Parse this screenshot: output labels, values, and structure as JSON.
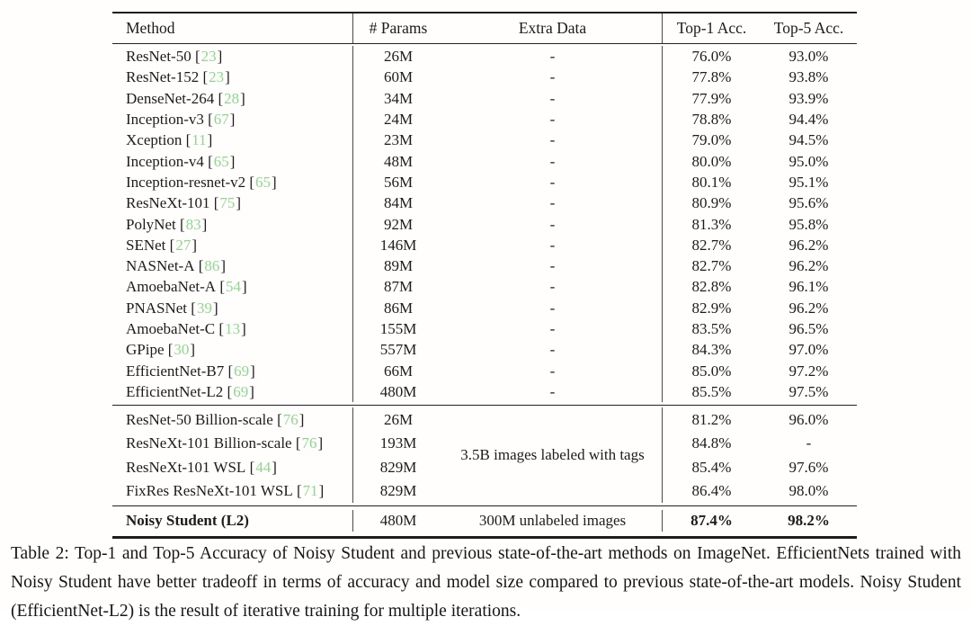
{
  "colors": {
    "citation_green": "#8ed88e",
    "text": "#1c1c1c"
  },
  "table": {
    "headers": {
      "method": "Method",
      "params": "# Params",
      "extra": "Extra Data",
      "top1": "Top-1 Acc.",
      "top5": "Top-5 Acc."
    },
    "section1": {
      "rows": [
        {
          "method": "ResNet-50",
          "cite": "23",
          "params": "26M",
          "extra": "-",
          "top1": "76.0%",
          "top5": "93.0%"
        },
        {
          "method": "ResNet-152",
          "cite": "23",
          "params": "60M",
          "extra": "-",
          "top1": "77.8%",
          "top5": "93.8%"
        },
        {
          "method": "DenseNet-264",
          "cite": "28",
          "params": "34M",
          "extra": "-",
          "top1": "77.9%",
          "top5": "93.9%"
        },
        {
          "method": "Inception-v3",
          "cite": "67",
          "params": "24M",
          "extra": "-",
          "top1": "78.8%",
          "top5": "94.4%"
        },
        {
          "method": "Xception",
          "cite": "11",
          "params": "23M",
          "extra": "-",
          "top1": "79.0%",
          "top5": "94.5%"
        },
        {
          "method": "Inception-v4",
          "cite": "65",
          "params": "48M",
          "extra": "-",
          "top1": "80.0%",
          "top5": "95.0%"
        },
        {
          "method": "Inception-resnet-v2",
          "cite": "65",
          "params": "56M",
          "extra": "-",
          "top1": "80.1%",
          "top5": "95.1%"
        },
        {
          "method": "ResNeXt-101",
          "cite": "75",
          "params": "84M",
          "extra": "-",
          "top1": "80.9%",
          "top5": "95.6%"
        },
        {
          "method": "PolyNet",
          "cite": "83",
          "params": "92M",
          "extra": "-",
          "top1": "81.3%",
          "top5": "95.8%"
        },
        {
          "method": "SENet",
          "cite": "27",
          "params": "146M",
          "extra": "-",
          "top1": "82.7%",
          "top5": "96.2%"
        },
        {
          "method": "NASNet-A",
          "cite": "86",
          "params": "89M",
          "extra": "-",
          "top1": "82.7%",
          "top5": "96.2%"
        },
        {
          "method": "AmoebaNet-A",
          "cite": "54",
          "params": "87M",
          "extra": "-",
          "top1": "82.8%",
          "top5": "96.1%"
        },
        {
          "method": "PNASNet",
          "cite": "39",
          "params": "86M",
          "extra": "-",
          "top1": "82.9%",
          "top5": "96.2%"
        },
        {
          "method": "AmoebaNet-C",
          "cite": "13",
          "params": "155M",
          "extra": "-",
          "top1": "83.5%",
          "top5": "96.5%"
        },
        {
          "method": "GPipe",
          "cite": "30",
          "params": "557M",
          "extra": "-",
          "top1": "84.3%",
          "top5": "97.0%"
        },
        {
          "method": "EfficientNet-B7",
          "cite": "69",
          "params": "66M",
          "extra": "-",
          "top1": "85.0%",
          "top5": "97.2%"
        },
        {
          "method": "EfficientNet-L2",
          "cite": "69",
          "params": "480M",
          "extra": "-",
          "top1": "85.5%",
          "top5": "97.5%"
        }
      ]
    },
    "section2": {
      "extra_shared": "3.5B images labeled with tags",
      "rows": [
        {
          "method": "ResNet-50 Billion-scale",
          "cite": "76",
          "params": "26M",
          "top1": "81.2%",
          "top5": "96.0%"
        },
        {
          "method": "ResNeXt-101 Billion-scale",
          "cite": "76",
          "params": "193M",
          "top1": "84.8%",
          "top5": "-"
        },
        {
          "method": "ResNeXt-101 WSL",
          "cite": "44",
          "params": "829M",
          "top1": "85.4%",
          "top5": "97.6%"
        },
        {
          "method": "FixRes ResNeXt-101 WSL",
          "cite": "71",
          "params": "829M",
          "top1": "86.4%",
          "top5": "98.0%"
        }
      ]
    },
    "section3": {
      "rows": [
        {
          "method": "Noisy Student (L2)",
          "cite": null,
          "params": "480M",
          "extra": "300M unlabeled images",
          "top1": "87.4%",
          "top5": "98.2%"
        }
      ]
    }
  },
  "caption": {
    "text": "Table 2: Top-1 and Top-5 Accuracy of Noisy Student and previous state-of-the-art methods on ImageNet. EfficientNets trained with Noisy Student have better tradeoff in terms of accuracy and model size compared to previous state-of-the-art models. Noisy Student (EfficientNet-L2) is the result of iterative training for multiple iterations."
  }
}
